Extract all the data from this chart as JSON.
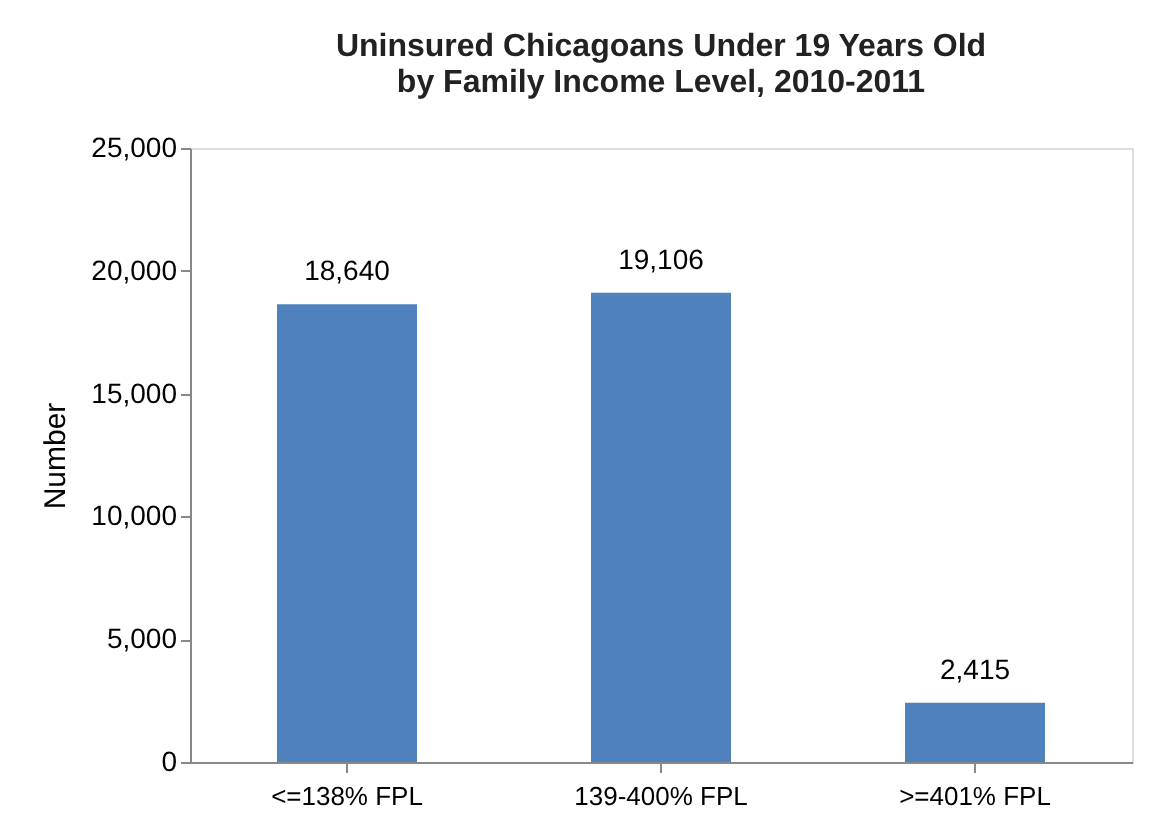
{
  "chart_data": {
    "type": "bar",
    "title": [
      "Uninsured Chicagoans  Under 19 Years Old",
      "by Family Income Level, 2010-2011"
    ],
    "ylabel": "Number",
    "categories": [
      "<=138% FPL",
      "139-400% FPL",
      ">=401% FPL"
    ],
    "values": [
      18640,
      19106,
      2415
    ],
    "value_labels": [
      "18,640",
      "19,106",
      "2,415"
    ],
    "color": "#4f81bd",
    "ylim": [
      0,
      25000
    ],
    "yticks": [
      0,
      {
        "value": 5000,
        "label": "5,000"
      },
      {
        "value": 10000,
        "label": "10,000"
      },
      {
        "value": 15000,
        "label": "15,000"
      },
      {
        "value": 20000,
        "label": "20,000"
      },
      {
        "value": 25000,
        "label": "25,000"
      }
    ],
    "grid": false
  }
}
